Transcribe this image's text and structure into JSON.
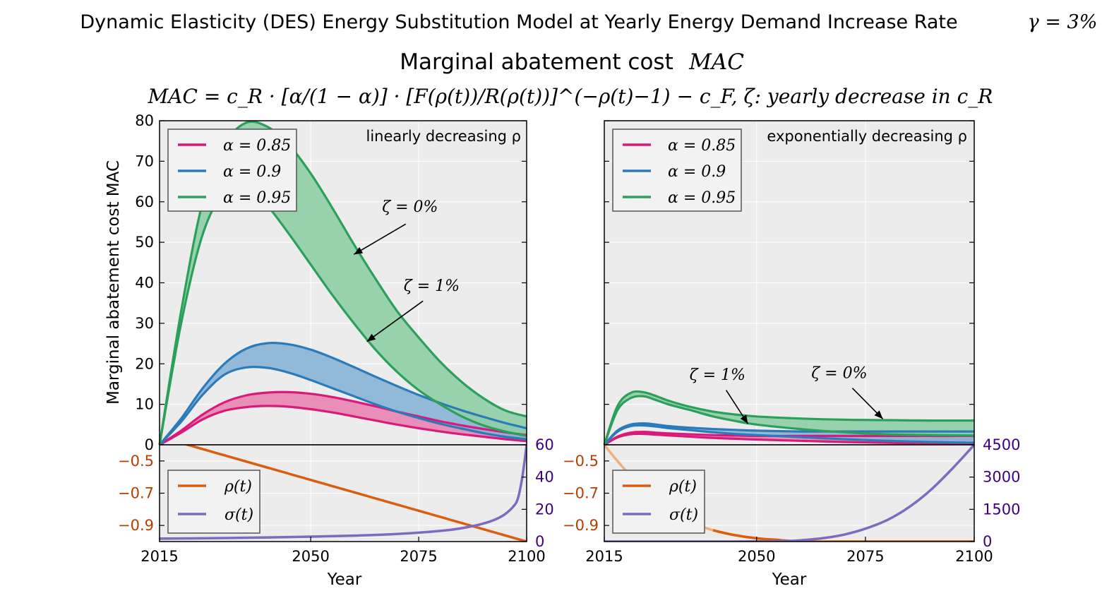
{
  "figure": {
    "title_text": "Dynamic Elasticity (DES) Energy Substitution Model at Yearly Energy Demand Increase Rate",
    "title_math": "γ = 3%",
    "subtitle": "Marginal abatement cost",
    "subtitle_math": "MAC",
    "formula": "MAC = c_R · [α/(1 − α)] · [F(ρ(t))/R(ρ(t))]^(−ρ(t)−1) − c_F,   ζ: yearly decrease in c_R",
    "colors": {
      "alpha_085": "#d81b7a",
      "alpha_09": "#2b7bba",
      "alpha_095": "#2ca05a",
      "fill_085": "#e884b4",
      "fill_09": "#8ab4d6",
      "fill_095": "#8ecfa6",
      "rho": "#d95f0e",
      "rho_light": "#f0b07e",
      "sigma": "#7b6cbd",
      "left_tick_color": "#b34000",
      "right_tick_color": "#3c0080",
      "panel_bg": "#ececec",
      "grid": "#ffffff"
    }
  },
  "chart_data": [
    {
      "panel": "left",
      "type": "area",
      "annotation_title": "linearly decreasing ρ",
      "ylabel": "Marginal abatement cost MAC",
      "xlabel": "Year",
      "xlim": [
        2015,
        2100
      ],
      "ylim": [
        0,
        80
      ],
      "x_ticks": [
        "2015",
        "2050",
        "2075",
        "2100"
      ],
      "y_ticks": [
        "0",
        "10",
        "20",
        "30",
        "40",
        "50",
        "60",
        "70",
        "80"
      ],
      "legend": [
        "α = 0.85",
        "α = 0.9",
        "α = 0.95"
      ],
      "legend_position": "top-left",
      "annotations": [
        {
          "text": "ζ = 0%",
          "points_to": [
            2060,
            47
          ]
        },
        {
          "text": "ζ = 1%",
          "points_to": [
            2063,
            25.5
          ]
        }
      ],
      "x": [
        2015,
        2020,
        2025,
        2030,
        2035,
        2040,
        2045,
        2050,
        2055,
        2060,
        2065,
        2070,
        2075,
        2080,
        2085,
        2090,
        2095,
        2100
      ],
      "series": [
        {
          "name": "α = 0.85",
          "zeta": "0%",
          "values": [
            0,
            3.5,
            7.5,
            10.5,
            12.2,
            12.9,
            13.0,
            12.6,
            11.8,
            10.7,
            9.5,
            8.2,
            7.0,
            5.8,
            4.8,
            3.9,
            3.1,
            2.4
          ]
        },
        {
          "name": "α = 0.85",
          "zeta": "1%",
          "values": [
            0,
            3.0,
            6.3,
            8.4,
            9.3,
            9.6,
            9.4,
            8.8,
            8.0,
            7.0,
            6.0,
            5.0,
            4.1,
            3.3,
            2.6,
            2.0,
            1.4,
            0.9
          ]
        },
        {
          "name": "α = 0.9",
          "zeta": "0%",
          "values": [
            0,
            6.5,
            14,
            20,
            23.7,
            25.1,
            24.8,
            23.5,
            21.5,
            19.2,
            16.8,
            14.5,
            12.3,
            10.3,
            8.5,
            6.9,
            5.4,
            4.1
          ]
        },
        {
          "name": "α = 0.9",
          "zeta": "1%",
          "values": [
            0,
            5.7,
            12.4,
            17.3,
            19.1,
            19.0,
            17.8,
            16.0,
            14.0,
            12.0,
            10.0,
            8.2,
            6.6,
            5.2,
            4.0,
            2.9,
            2.0,
            1.4
          ]
        },
        {
          "name": "α = 0.95",
          "zeta": "0%",
          "values": [
            0,
            33,
            60,
            74,
            79.5,
            78.5,
            74,
            67,
            58.5,
            49.5,
            41,
            33,
            26.5,
            20.5,
            15.5,
            11.5,
            8.5,
            7.0
          ]
        },
        {
          "name": "α = 0.95",
          "zeta": "1%",
          "values": [
            0,
            30,
            52,
            62.5,
            64,
            59,
            52,
            44.5,
            37,
            30,
            23.5,
            18,
            13.5,
            10,
            7,
            4.8,
            3.3,
            2.2
          ]
        }
      ]
    },
    {
      "panel": "right",
      "type": "area",
      "annotation_title": "exponentially decreasing ρ",
      "xlabel": "Year",
      "xlim": [
        2015,
        2100
      ],
      "ylim": [
        0,
        80
      ],
      "x_ticks": [
        "2015",
        "2050",
        "2075",
        "2100"
      ],
      "legend": [
        "α = 0.85",
        "α = 0.9",
        "α = 0.95"
      ],
      "legend_position": "top-left",
      "annotations": [
        {
          "text": "ζ = 1%",
          "points_to": [
            2048,
            5.2
          ]
        },
        {
          "text": "ζ = 0%",
          "points_to": [
            2079,
            6.4
          ]
        }
      ],
      "x": [
        2015,
        2018,
        2021,
        2024,
        2027,
        2030,
        2035,
        2040,
        2045,
        2050,
        2060,
        2070,
        2080,
        2090,
        2100
      ],
      "series": [
        {
          "name": "α = 0.85",
          "zeta": "0%",
          "values": [
            0,
            2.0,
            3.0,
            3.2,
            3.0,
            2.8,
            2.6,
            2.4,
            2.3,
            2.2,
            2.2,
            2.2,
            2.2,
            2.2,
            2.2
          ]
        },
        {
          "name": "α = 0.85",
          "zeta": "1%",
          "values": [
            0,
            1.8,
            2.6,
            2.7,
            2.5,
            2.3,
            2.0,
            1.7,
            1.5,
            1.3,
            1.0,
            0.7,
            0.5,
            0.3,
            0.2
          ]
        },
        {
          "name": "α = 0.9",
          "zeta": "0%",
          "values": [
            0,
            3.5,
            5.0,
            5.3,
            5.0,
            4.6,
            4.2,
            3.9,
            3.7,
            3.5,
            3.3,
            3.3,
            3.3,
            3.3,
            3.3
          ]
        },
        {
          "name": "α = 0.9",
          "zeta": "1%",
          "values": [
            0,
            3.2,
            4.6,
            4.8,
            4.5,
            4.1,
            3.6,
            3.1,
            2.7,
            2.4,
            1.9,
            1.4,
            1.0,
            0.7,
            0.5
          ]
        },
        {
          "name": "α = 0.95",
          "zeta": "0%",
          "values": [
            0,
            9.5,
            12.8,
            13.0,
            12.0,
            10.8,
            9.3,
            8.2,
            7.5,
            7.0,
            6.5,
            6.2,
            6.1,
            6.0,
            6.0
          ]
        },
        {
          "name": "α = 0.95",
          "zeta": "1%",
          "values": [
            0,
            8.5,
            11.5,
            12.0,
            11.0,
            9.9,
            8.5,
            7.0,
            5.9,
            5.0,
            3.9,
            3.1,
            2.6,
            2.4,
            2.3
          ]
        }
      ]
    },
    {
      "panel": "left-lower",
      "type": "line",
      "xlim": [
        2015,
        2100
      ],
      "ylim_left": [
        -1.0,
        -0.4
      ],
      "ylim_right": [
        0,
        60
      ],
      "y_ticks_left": [
        "−0.5",
        "−0.7",
        "−0.9"
      ],
      "y_ticks_right": [
        "0",
        "20",
        "40",
        "60"
      ],
      "legend": [
        "ρ(t)",
        "σ(t)"
      ],
      "legend_position": "bottom-left",
      "rho": {
        "name": "ρ(t)",
        "x": [
          2015,
          2100
        ],
        "values": [
          -0.35,
          -1.0
        ]
      },
      "sigma": {
        "name": "σ(t)",
        "x": [
          2015,
          2030,
          2045,
          2060,
          2070,
          2080,
          2085,
          2090,
          2093,
          2095,
          2097,
          2098,
          2099,
          2100
        ],
        "values": [
          1.8,
          2.2,
          2.8,
          3.7,
          4.7,
          6.6,
          8.3,
          11.2,
          14,
          17,
          22,
          27,
          40,
          60
        ]
      }
    },
    {
      "panel": "right-lower",
      "type": "line",
      "xlim": [
        2015,
        2100
      ],
      "ylim_left": [
        -1.0,
        -0.4
      ],
      "ylim_right": [
        0,
        4500
      ],
      "y_ticks_left": [
        "−0.5",
        "−0.7",
        "−0.9"
      ],
      "y_ticks_right": [
        "0",
        "1500",
        "3000",
        "4500"
      ],
      "legend": [
        "ρ(t)",
        "σ(t)"
      ],
      "legend_position": "bottom-left",
      "rho": {
        "name": "ρ(t)",
        "x": [
          2015,
          2018,
          2022,
          2026,
          2030,
          2035,
          2040,
          2045,
          2050,
          2055,
          2060,
          2070,
          2100
        ],
        "values": [
          -0.4,
          -0.5,
          -0.62,
          -0.73,
          -0.81,
          -0.88,
          -0.93,
          -0.96,
          -0.98,
          -0.99,
          -1.0,
          -1.0,
          -1.0
        ]
      },
      "sigma": {
        "name": "σ(t)",
        "x": [
          2015,
          2030,
          2045,
          2055,
          2060,
          2065,
          2070,
          2075,
          2080,
          2085,
          2090,
          2095,
          2100
        ],
        "values": [
          0,
          0,
          0,
          15,
          60,
          150,
          320,
          600,
          1000,
          1600,
          2400,
          3400,
          4500
        ]
      }
    }
  ]
}
